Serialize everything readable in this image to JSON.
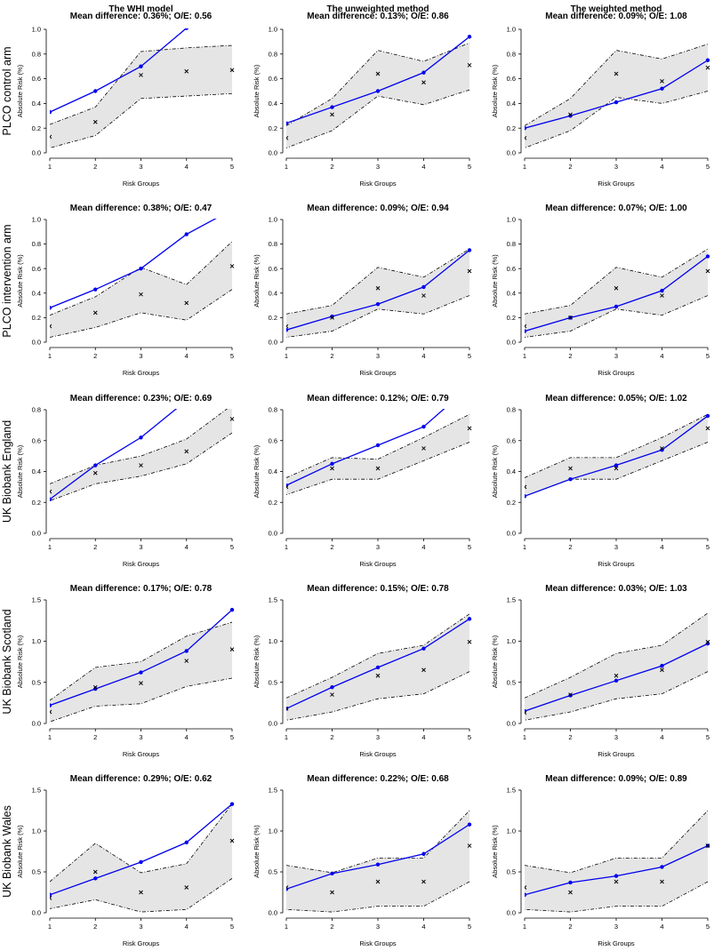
{
  "figure": {
    "column_titles": [
      "The WHI model",
      "The unweighted method",
      "The weighted method"
    ],
    "row_labels": [
      "PLCO control arm",
      "PLCO intervention arm",
      "UK Biobank England",
      "UK Biobank Scotland",
      "UK Biobank Wales"
    ],
    "xlabel": "Risk Groups",
    "ylabel": "Absolute Risk (%)",
    "colors": {
      "predicted_line": "#0000ee",
      "band_fill": "#e5e5e5",
      "band_border": "#000000",
      "observed_marker": "#000000"
    },
    "series_legend": {
      "band": "dot-dash band (not labelled in figure)",
      "observed": "x markers",
      "predicted": "blue line with dots"
    }
  },
  "chart_data": [
    {
      "type": "line",
      "row": 0,
      "col": 0,
      "title": "Mean difference: 0.36%; O/E: 0.56",
      "xlabel": "Risk Groups",
      "ylabel": "Absolute Risk (%)",
      "x": [
        1,
        2,
        3,
        4,
        5
      ],
      "xlim": [
        1,
        5
      ],
      "ylim": [
        0,
        1.0
      ],
      "yticks": [
        "0.0",
        "0.2",
        "0.4",
        "0.6",
        "0.8",
        "1.0"
      ],
      "predicted": [
        0.33,
        0.5,
        0.7,
        1.01,
        null
      ],
      "observed": [
        0.13,
        0.25,
        0.63,
        0.66,
        0.67
      ],
      "band_upper": [
        0.23,
        0.37,
        0.82,
        0.85,
        0.87
      ],
      "band_lower": [
        0.04,
        0.14,
        0.44,
        0.46,
        0.48
      ]
    },
    {
      "type": "line",
      "row": 0,
      "col": 1,
      "title": "Mean difference: 0.13%; O/E: 0.86",
      "xlabel": "Risk Groups",
      "ylabel": "Absolute Risk (%)",
      "x": [
        1,
        2,
        3,
        4,
        5
      ],
      "xlim": [
        1,
        5
      ],
      "ylim": [
        0,
        1.0
      ],
      "yticks": [
        "0.0",
        "0.2",
        "0.4",
        "0.6",
        "0.8",
        "1.0"
      ],
      "predicted": [
        0.24,
        0.37,
        0.5,
        0.65,
        0.94
      ],
      "observed": [
        0.12,
        0.31,
        0.64,
        0.57,
        0.71
      ],
      "band_upper": [
        0.22,
        0.44,
        0.83,
        0.74,
        0.89
      ],
      "band_lower": [
        0.04,
        0.18,
        0.46,
        0.39,
        0.51
      ]
    },
    {
      "type": "line",
      "row": 0,
      "col": 2,
      "title": "Mean difference: 0.09%; O/E: 1.08",
      "xlabel": "Risk Groups",
      "ylabel": "Absolute Risk (%)",
      "x": [
        1,
        2,
        3,
        4,
        5
      ],
      "xlim": [
        1,
        5
      ],
      "ylim": [
        0,
        1.0
      ],
      "yticks": [
        "0.0",
        "0.2",
        "0.4",
        "0.6",
        "0.8",
        "1.0"
      ],
      "predicted": [
        0.2,
        0.3,
        0.41,
        0.52,
        0.75
      ],
      "observed": [
        0.12,
        0.31,
        0.64,
        0.58,
        0.69
      ],
      "band_upper": [
        0.22,
        0.44,
        0.83,
        0.76,
        0.88
      ],
      "band_lower": [
        0.04,
        0.18,
        0.45,
        0.4,
        0.5
      ]
    },
    {
      "type": "line",
      "row": 1,
      "col": 0,
      "title": "Mean difference: 0.38%; O/E: 0.47",
      "xlabel": "Risk Groups",
      "ylabel": "Absolute Risk (%)",
      "x": [
        1,
        2,
        3,
        4,
        5
      ],
      "xlim": [
        1,
        5
      ],
      "ylim": [
        0,
        1.0
      ],
      "yticks": [
        "0.0",
        "0.2",
        "0.4",
        "0.6",
        "0.8",
        "1.0"
      ],
      "predicted": [
        0.28,
        0.43,
        0.6,
        0.88,
        1.08
      ],
      "observed": [
        0.13,
        0.24,
        0.39,
        0.32,
        0.62
      ],
      "band_upper": [
        0.22,
        0.37,
        0.61,
        0.47,
        0.82
      ],
      "band_lower": [
        0.04,
        0.12,
        0.24,
        0.18,
        0.43
      ]
    },
    {
      "type": "line",
      "row": 1,
      "col": 1,
      "title": "Mean difference: 0.09%; O/E: 0.94",
      "xlabel": "Risk Groups",
      "ylabel": "Absolute Risk (%)",
      "x": [
        1,
        2,
        3,
        4,
        5
      ],
      "xlim": [
        1,
        5
      ],
      "ylim": [
        0,
        1.0
      ],
      "yticks": [
        "0.0",
        "0.2",
        "0.4",
        "0.6",
        "0.8",
        "1.0"
      ],
      "predicted": [
        0.1,
        0.21,
        0.31,
        0.45,
        0.75
      ],
      "observed": [
        0.13,
        0.2,
        0.44,
        0.38,
        0.58
      ],
      "band_upper": [
        0.23,
        0.3,
        0.61,
        0.53,
        0.76
      ],
      "band_lower": [
        0.04,
        0.09,
        0.27,
        0.23,
        0.38
      ]
    },
    {
      "type": "line",
      "row": 1,
      "col": 2,
      "title": "Mean difference: 0.07%; O/E: 1.00",
      "xlabel": "Risk Groups",
      "ylabel": "Absolute Risk (%)",
      "x": [
        1,
        2,
        3,
        4,
        5
      ],
      "xlim": [
        1,
        5
      ],
      "ylim": [
        0,
        1.0
      ],
      "yticks": [
        "0.0",
        "0.2",
        "0.4",
        "0.6",
        "0.8",
        "1.0"
      ],
      "predicted": [
        0.09,
        0.2,
        0.29,
        0.42,
        0.7
      ],
      "observed": [
        0.13,
        0.2,
        0.44,
        0.38,
        0.58
      ],
      "band_upper": [
        0.23,
        0.3,
        0.61,
        0.53,
        0.76
      ],
      "band_lower": [
        0.04,
        0.09,
        0.27,
        0.22,
        0.38
      ]
    },
    {
      "type": "line",
      "row": 2,
      "col": 0,
      "title": "Mean difference: 0.23%; O/E: 0.69",
      "xlabel": "Risk Groups",
      "ylabel": "Absolute Risk (%)",
      "x": [
        1,
        2,
        3,
        4,
        5
      ],
      "xlim": [
        1,
        5
      ],
      "ylim": [
        0,
        0.8
      ],
      "yticks": [
        "0.0",
        "0.2",
        "0.4",
        "0.6",
        "0.8"
      ],
      "predicted": [
        0.22,
        0.44,
        0.62,
        0.86,
        1.05
      ],
      "observed": [
        0.27,
        0.39,
        0.44,
        0.53,
        0.74
      ],
      "band_upper": [
        0.32,
        0.44,
        0.5,
        0.61,
        0.83
      ],
      "band_lower": [
        0.21,
        0.32,
        0.37,
        0.45,
        0.65
      ]
    },
    {
      "type": "line",
      "row": 2,
      "col": 1,
      "title": "Mean difference: 0.12%; O/E: 0.79",
      "xlabel": "Risk Groups",
      "ylabel": "Absolute Risk (%)",
      "x": [
        1,
        2,
        3,
        4,
        5
      ],
      "xlim": [
        1,
        5
      ],
      "ylim": [
        0,
        0.8
      ],
      "yticks": [
        "0.0",
        "0.2",
        "0.4",
        "0.6",
        "0.8"
      ],
      "predicted": [
        0.31,
        0.45,
        0.57,
        0.69,
        0.95
      ],
      "observed": [
        0.3,
        0.42,
        0.42,
        0.55,
        0.68
      ],
      "band_upper": [
        0.36,
        0.49,
        0.48,
        0.62,
        0.77
      ],
      "band_lower": [
        0.25,
        0.35,
        0.35,
        0.47,
        0.59
      ]
    },
    {
      "type": "line",
      "row": 2,
      "col": 2,
      "title": "Mean difference: 0.05%; O/E: 1.02",
      "xlabel": "Risk Groups",
      "ylabel": "Absolute Risk (%)",
      "x": [
        1,
        2,
        3,
        4,
        5
      ],
      "xlim": [
        1,
        5
      ],
      "ylim": [
        0,
        0.8
      ],
      "yticks": [
        "0.0",
        "0.2",
        "0.4",
        "0.6",
        "0.8"
      ],
      "predicted": [
        0.24,
        0.35,
        0.44,
        0.54,
        0.76
      ],
      "observed": [
        0.3,
        0.42,
        0.42,
        0.55,
        0.68
      ],
      "band_upper": [
        0.36,
        0.49,
        0.49,
        0.62,
        0.77
      ],
      "band_lower": [
        0.24,
        0.35,
        0.35,
        0.47,
        0.59
      ]
    },
    {
      "type": "line",
      "row": 3,
      "col": 0,
      "title": "Mean difference: 0.17%; O/E: 0.78",
      "xlabel": "Risk Groups",
      "ylabel": "Absolute Risk (%)",
      "x": [
        1,
        2,
        3,
        4,
        5
      ],
      "xlim": [
        1,
        5
      ],
      "ylim": [
        0,
        1.5
      ],
      "yticks": [
        "0.0",
        "0.5",
        "1.0",
        "1.5"
      ],
      "predicted": [
        0.22,
        0.42,
        0.62,
        0.88,
        1.38
      ],
      "observed": [
        0.14,
        0.44,
        0.49,
        0.76,
        0.9
      ],
      "band_upper": [
        0.28,
        0.68,
        0.75,
        1.06,
        1.23
      ],
      "band_lower": [
        0.02,
        0.21,
        0.24,
        0.45,
        0.55
      ]
    },
    {
      "type": "line",
      "row": 3,
      "col": 1,
      "title": "Mean difference: 0.15%; O/E: 0.78",
      "xlabel": "Risk Groups",
      "ylabel": "Absolute Risk (%)",
      "x": [
        1,
        2,
        3,
        4,
        5
      ],
      "xlim": [
        1,
        5
      ],
      "ylim": [
        0,
        1.5
      ],
      "yticks": [
        "0.0",
        "0.5",
        "1.0",
        "1.5"
      ],
      "predicted": [
        0.18,
        0.44,
        0.68,
        0.91,
        1.27
      ],
      "observed": [
        0.18,
        0.35,
        0.58,
        0.65,
        0.99
      ],
      "band_upper": [
        0.31,
        0.56,
        0.85,
        0.95,
        1.33
      ],
      "band_lower": [
        0.04,
        0.14,
        0.3,
        0.36,
        0.63
      ]
    },
    {
      "type": "line",
      "row": 3,
      "col": 2,
      "title": "Mean difference: 0.03%; O/E: 1.03",
      "xlabel": "Risk Groups",
      "ylabel": "Absolute Risk (%)",
      "x": [
        1,
        2,
        3,
        4,
        5
      ],
      "xlim": [
        1,
        5
      ],
      "ylim": [
        0,
        1.5
      ],
      "yticks": [
        "0.0",
        "0.5",
        "1.0",
        "1.5"
      ],
      "predicted": [
        0.15,
        0.34,
        0.52,
        0.7,
        0.97
      ],
      "observed": [
        0.13,
        0.35,
        0.58,
        0.65,
        0.99
      ],
      "band_upper": [
        0.31,
        0.56,
        0.85,
        0.95,
        1.34
      ],
      "band_lower": [
        0.04,
        0.14,
        0.3,
        0.36,
        0.63
      ]
    },
    {
      "type": "line",
      "row": 4,
      "col": 0,
      "title": "Mean difference: 0.29%; O/E: 0.62",
      "xlabel": "Risk Groups",
      "ylabel": "Absolute Risk (%)",
      "x": [
        1,
        2,
        3,
        4,
        5
      ],
      "xlim": [
        1,
        5
      ],
      "ylim": [
        0,
        1.5
      ],
      "yticks": [
        "0.0",
        "0.5",
        "1.0",
        "1.5"
      ],
      "predicted": [
        0.22,
        0.42,
        0.62,
        0.86,
        1.33
      ],
      "observed": [
        0.18,
        0.5,
        0.25,
        0.31,
        0.88
      ],
      "band_upper": [
        0.38,
        0.85,
        0.49,
        0.6,
        1.33
      ],
      "band_lower": [
        0.05,
        0.16,
        0.01,
        0.04,
        0.42
      ]
    },
    {
      "type": "line",
      "row": 4,
      "col": 1,
      "title": "Mean difference: 0.22%; O/E: 0.68",
      "xlabel": "Risk Groups",
      "ylabel": "Absolute Risk (%)",
      "x": [
        1,
        2,
        3,
        4,
        5
      ],
      "xlim": [
        1,
        5
      ],
      "ylim": [
        0,
        1.5
      ],
      "yticks": [
        "0.0",
        "0.5",
        "1.0",
        "1.5"
      ],
      "predicted": [
        0.29,
        0.48,
        0.59,
        0.72,
        1.08
      ],
      "observed": [
        0.31,
        0.25,
        0.38,
        0.38,
        0.82
      ],
      "band_upper": [
        0.58,
        0.49,
        0.67,
        0.67,
        1.25
      ],
      "band_lower": [
        0.04,
        0.01,
        0.08,
        0.08,
        0.38
      ]
    },
    {
      "type": "line",
      "row": 4,
      "col": 2,
      "title": "Mean difference: 0.09%; O/E: 0.89",
      "xlabel": "Risk Groups",
      "ylabel": "Absolute Risk (%)",
      "x": [
        1,
        2,
        3,
        4,
        5
      ],
      "xlim": [
        1,
        5
      ],
      "ylim": [
        0,
        1.5
      ],
      "yticks": [
        "0.0",
        "0.5",
        "1.0",
        "1.5"
      ],
      "predicted": [
        0.22,
        0.37,
        0.45,
        0.56,
        0.82
      ],
      "observed": [
        0.31,
        0.25,
        0.38,
        0.38,
        0.82
      ],
      "band_upper": [
        0.58,
        0.49,
        0.67,
        0.67,
        1.25
      ],
      "band_lower": [
        0.04,
        0.01,
        0.08,
        0.08,
        0.38
      ]
    }
  ]
}
